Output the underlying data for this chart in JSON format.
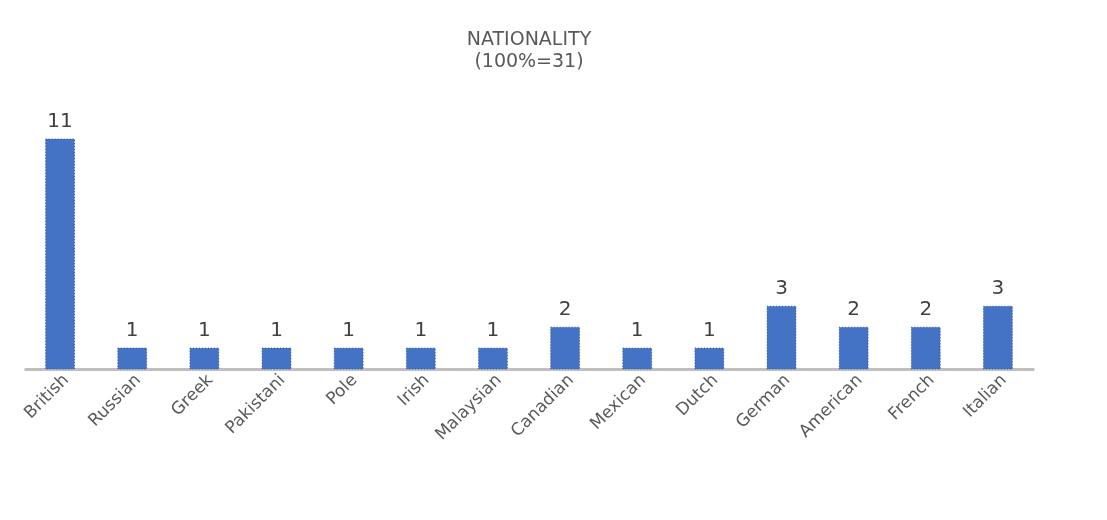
{
  "chart_data": {
    "type": "bar",
    "title": "NATIONALITY",
    "subtitle": "(100%=31)",
    "categories": [
      "British",
      "Russian",
      "Greek",
      "Pakistani",
      "Pole",
      "Irish",
      "Malaysian",
      "Canadian",
      "Mexican",
      "Dutch",
      "German",
      "American",
      "French",
      "Italian"
    ],
    "values": [
      11,
      1,
      1,
      1,
      1,
      1,
      1,
      2,
      1,
      1,
      3,
      2,
      2,
      3
    ],
    "color": "#4472c4",
    "data_labels": true,
    "tick_labels": "x"
  }
}
